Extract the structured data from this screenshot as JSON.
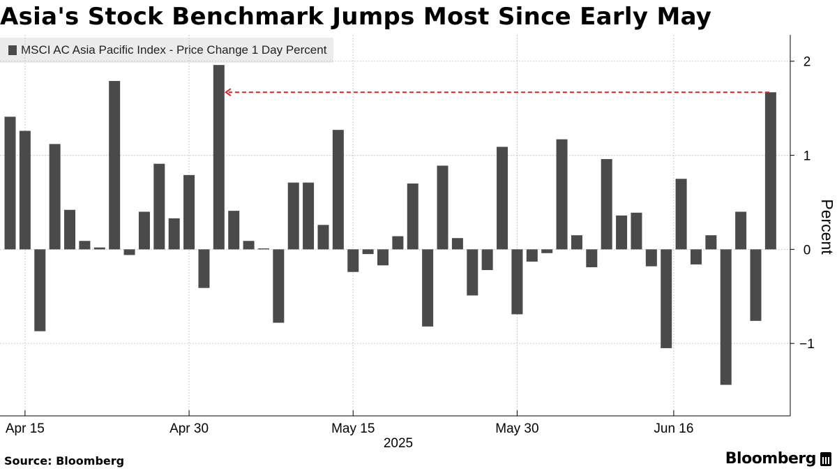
{
  "header": {
    "title": "Asia's Stock Benchmark Jumps Most Since Early May"
  },
  "footer": {
    "source": "Source: Bloomberg",
    "brand": "Bloomberg"
  },
  "colors": {
    "bar": "#4a4a4a",
    "grid": "#c8c8c8",
    "annotation": "#e02020"
  },
  "chart_data": {
    "type": "bar",
    "title": "Asia's Stock Benchmark Jumps Most Since Early May",
    "legend": [
      "MSCI AC Asia Pacific Index - Price Change 1 Day Percent"
    ],
    "legend_position": "top-left",
    "ylabel": "Percent",
    "xlabel": "2025",
    "ylim": [
      -1.77,
      2.28
    ],
    "yticks": [
      2,
      1,
      0,
      -1
    ],
    "ytick_labels": [
      "2",
      "1",
      "0",
      "−1"
    ],
    "xtick_labels": [
      "Apr 15",
      "Apr 30",
      "May 15",
      "May 30",
      "Jun 16"
    ],
    "xtick_positions": [
      1,
      12,
      23,
      34,
      44.5
    ],
    "year_label": "2025",
    "grid": true,
    "values": [
      1.41,
      1.26,
      -0.87,
      1.12,
      0.42,
      0.09,
      0.02,
      1.79,
      -0.06,
      0.4,
      0.91,
      0.33,
      0.79,
      -0.41,
      1.96,
      0.41,
      0.09,
      0.01,
      -0.78,
      0.71,
      0.71,
      0.26,
      1.27,
      -0.24,
      -0.05,
      -0.17,
      0.14,
      0.7,
      -0.82,
      0.89,
      0.12,
      -0.49,
      -0.22,
      1.09,
      -0.69,
      -0.13,
      -0.04,
      1.17,
      0.15,
      -0.19,
      0.96,
      0.36,
      0.39,
      -0.18,
      -1.05,
      0.75,
      -0.16,
      0.15,
      -1.44,
      0.4,
      -0.76,
      1.67
    ],
    "annotation": {
      "type": "dashed-arrow",
      "from_index": 51,
      "to_index": 14,
      "level": 1.67
    }
  }
}
